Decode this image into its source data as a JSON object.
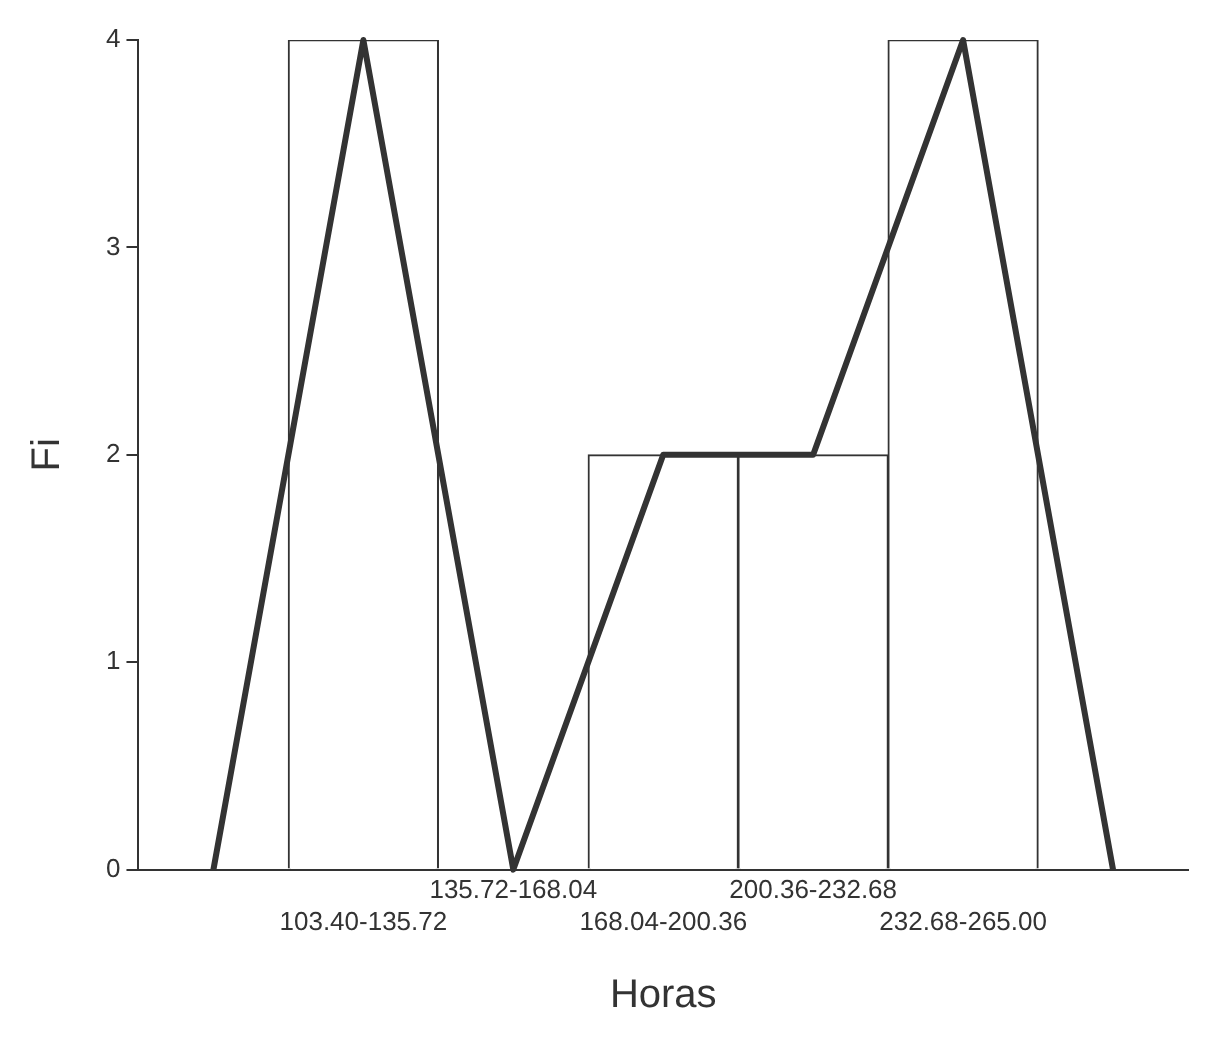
{
  "chart_data": {
    "type": "bar",
    "xlabel": "Horas",
    "ylabel": "Fi",
    "categories": [
      null,
      "103.40-135.72",
      "135.72-168.04",
      "168.04-200.36",
      "200.36-232.68",
      "232.68-265.00",
      null
    ],
    "series": [
      {
        "type": "bar",
        "color": "#ffffff",
        "values": [
          null,
          4,
          0,
          2,
          2,
          4,
          null
        ]
      },
      {
        "type": "line",
        "color": "#333333",
        "values": [
          0,
          4,
          0,
          2,
          2,
          4,
          0
        ]
      }
    ],
    "ylim": [
      0,
      4
    ],
    "yticks": [
      0,
      1,
      2,
      3,
      4
    ],
    "grid": false,
    "legend": false,
    "marker": "none",
    "line_style": "solid"
  }
}
